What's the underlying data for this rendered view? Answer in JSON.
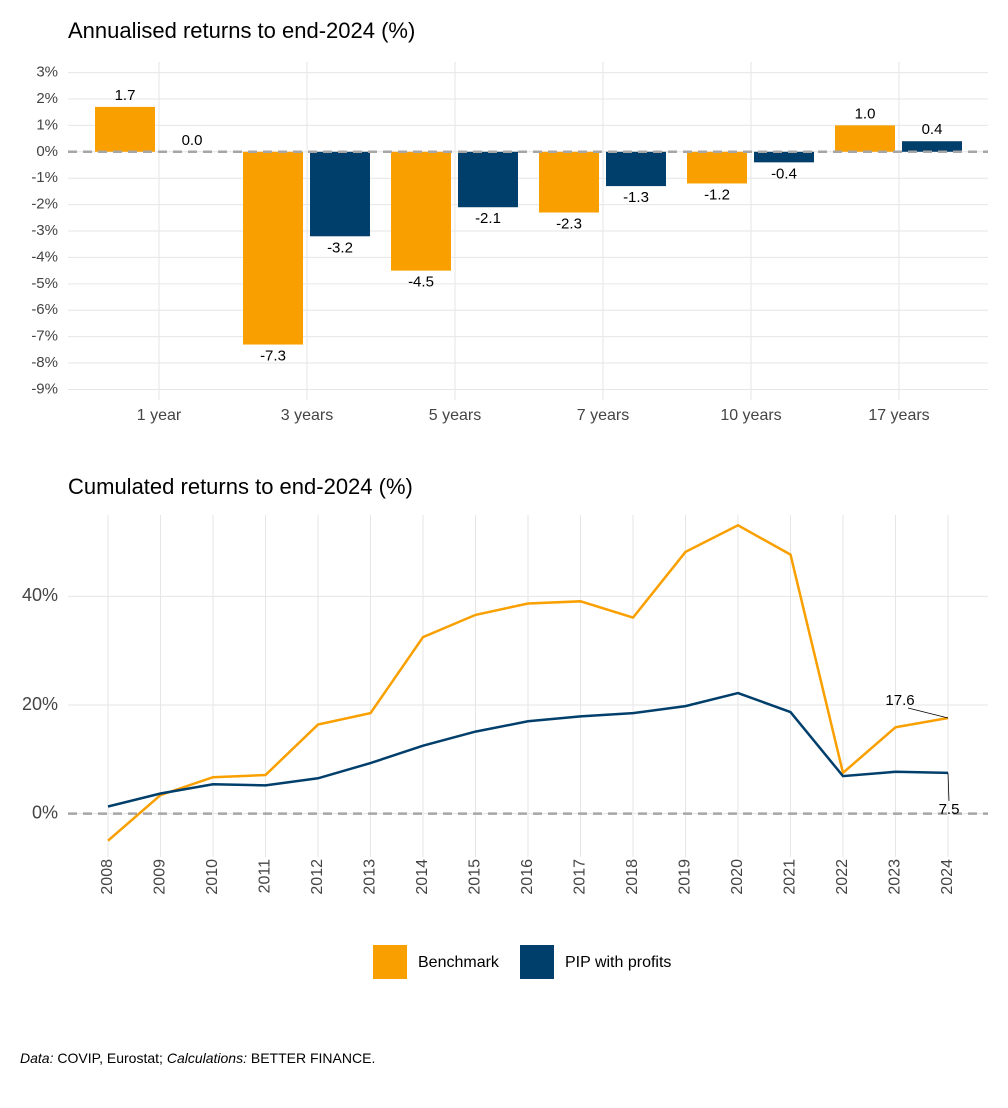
{
  "charts_note_free": true,
  "chart_data": [
    {
      "type": "bar",
      "title": "Annualised returns to end-2024 (%)",
      "categories": [
        "1 year",
        "3 years",
        "5 years",
        "7 years",
        "10 years",
        "17 years"
      ],
      "series": [
        {
          "name": "Benchmark",
          "color": "#f9a000",
          "values": [
            1.7,
            -7.3,
            -4.5,
            -2.3,
            -1.2,
            1.0
          ],
          "value_labels": [
            "1.7",
            "-7.3",
            "-4.5",
            "-2.3",
            "-1.2",
            "1.0"
          ]
        },
        {
          "name": "PIP with profits",
          "color": "#003f6b",
          "values": [
            0.0,
            -3.2,
            -2.1,
            -1.3,
            -0.4,
            0.4
          ],
          "value_labels": [
            "0.0",
            "-3.2",
            "-2.1",
            "-1.3",
            "-0.4",
            "0.4"
          ]
        }
      ],
      "ylim": [
        -9.4,
        3.4
      ],
      "yticks": [
        {
          "value": 3,
          "label": "3%"
        },
        {
          "value": 2,
          "label": "2%"
        },
        {
          "value": 1,
          "label": "1%"
        },
        {
          "value": 0,
          "label": "0%"
        },
        {
          "value": -1,
          "label": "-1%"
        },
        {
          "value": -2,
          "label": "-2%"
        },
        {
          "value": -3,
          "label": "-3%"
        },
        {
          "value": -4,
          "label": "-4%"
        },
        {
          "value": -5,
          "label": "-5%"
        },
        {
          "value": -6,
          "label": "-6%"
        },
        {
          "value": -7,
          "label": "-7%"
        },
        {
          "value": -8,
          "label": "-8%"
        },
        {
          "value": -9,
          "label": "-9%"
        }
      ],
      "grid": true
    },
    {
      "type": "line",
      "title": "Cumulated returns to end-2024 (%)",
      "x": [
        2008,
        2009,
        2010,
        2011,
        2012,
        2013,
        2014,
        2015,
        2016,
        2017,
        2018,
        2019,
        2020,
        2021,
        2022,
        2023,
        2024
      ],
      "series": [
        {
          "color": "#f9a000",
          "values": [
            -5.0,
            3.4,
            6.7,
            7.1,
            16.4,
            18.5,
            32.5,
            36.6,
            38.7,
            39.1,
            36.1,
            48.2,
            53.1,
            47.7,
            7.5,
            15.9,
            17.6
          ]
        },
        {
          "color": "#003f6b",
          "values": [
            1.3,
            3.7,
            5.4,
            5.2,
            6.5,
            9.3,
            12.5,
            15.1,
            17.0,
            17.9,
            18.5,
            19.8,
            22.2,
            18.7,
            6.9,
            7.7,
            7.5
          ]
        }
      ],
      "xlim": [
        2007.6,
        2024.4
      ],
      "xticks": [
        2008,
        2009,
        2010,
        2011,
        2012,
        2013,
        2014,
        2015,
        2016,
        2017,
        2018,
        2019,
        2020,
        2021,
        2022,
        2023,
        2024
      ],
      "ylim": [
        -8,
        55
      ],
      "yticks": [
        {
          "value": 0,
          "label": "0%"
        },
        {
          "value": 20,
          "label": "20%"
        },
        {
          "value": 40,
          "label": "40%"
        }
      ],
      "grid": true
    }
  ],
  "caption": [
    "Data:",
    "COVIP, Eurostat;",
    "Calculations:",
    "BETTER FINANCE."
  ]
}
